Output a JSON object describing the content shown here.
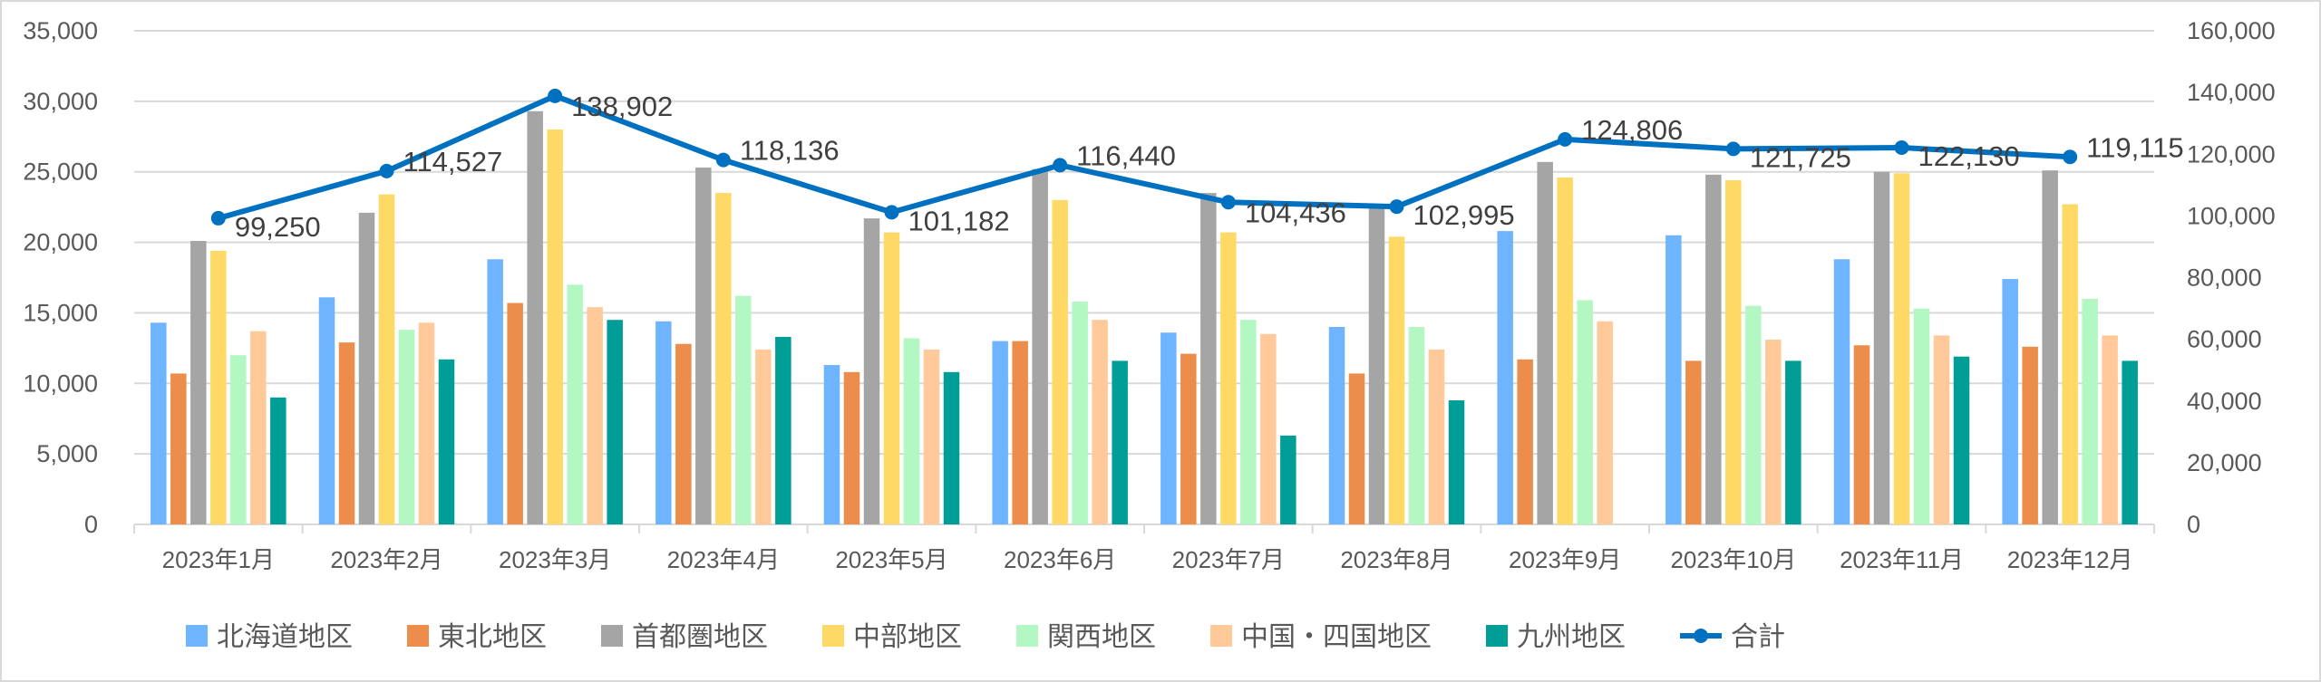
{
  "chart_data": {
    "type": "bar+line",
    "title": "",
    "categories": [
      "2023年1月",
      "2023年2月",
      "2023年3月",
      "2023年4月",
      "2023年5月",
      "2023年6月",
      "2023年7月",
      "2023年8月",
      "2023年9月",
      "2023年10月",
      "2023年11月",
      "2023年12月"
    ],
    "series": [
      {
        "name": "北海道地区",
        "type": "bar",
        "axis": "left",
        "color": "#6EB4FF",
        "values": [
          14300,
          16100,
          18800,
          14400,
          11300,
          13000,
          13600,
          14000,
          20800,
          20500,
          18800,
          17400
        ]
      },
      {
        "name": "東北地区",
        "type": "bar",
        "axis": "left",
        "color": "#ED8D4C",
        "values": [
          10700,
          12900,
          15700,
          12800,
          10800,
          13000,
          12100,
          10700,
          11700,
          11600,
          12700,
          12600
        ]
      },
      {
        "name": "首都圏地区",
        "type": "bar",
        "axis": "left",
        "color": "#A5A5A5",
        "values": [
          20100,
          22100,
          29300,
          25300,
          21700,
          25200,
          23500,
          22500,
          25700,
          24800,
          25000,
          25100
        ]
      },
      {
        "name": "中部地区",
        "type": "bar",
        "axis": "left",
        "color": "#FFD966",
        "values": [
          19400,
          23400,
          28000,
          23500,
          20700,
          23000,
          20700,
          20400,
          24600,
          24400,
          24900,
          22700
        ]
      },
      {
        "name": "関西地区",
        "type": "bar",
        "axis": "left",
        "color": "#B3F7C3",
        "values": [
          12000,
          13800,
          17000,
          16200,
          13200,
          15800,
          14500,
          14000,
          15900,
          15500,
          15300,
          16000
        ]
      },
      {
        "name": "中国・四国地区",
        "type": "bar",
        "axis": "left",
        "color": "#FFC999",
        "values": [
          13700,
          14300,
          15400,
          12400,
          12400,
          14500,
          13500,
          12400,
          14400,
          13100,
          13400,
          13400
        ]
      },
      {
        "name": "九州地区",
        "type": "bar",
        "axis": "left",
        "color": "#009E96",
        "values": [
          9000,
          11700,
          14500,
          13300,
          10800,
          11600,
          6300,
          8800,
          null,
          11600,
          11900,
          11600
        ]
      },
      {
        "name": "合計",
        "type": "line",
        "axis": "right",
        "color": "#0070C0",
        "values": [
          99250,
          114527,
          138902,
          118136,
          101182,
          116440,
          104436,
          102995,
          124806,
          121725,
          122130,
          119115
        ],
        "labels": [
          "99,250",
          "114,527",
          "138,902",
          "118,136",
          "101,182",
          "116,440",
          "104,436",
          "102,995",
          "124,806",
          "121,725",
          "122,130",
          "119,115"
        ]
      }
    ],
    "left_axis": {
      "range": [
        0,
        35000
      ],
      "ticks": [
        "0",
        "5,000",
        "10,000",
        "15,000",
        "20,000",
        "25,000",
        "30,000",
        "35,000"
      ]
    },
    "right_axis": {
      "range": [
        0,
        160000
      ],
      "ticks": [
        "0",
        "20,000",
        "40,000",
        "60,000",
        "80,000",
        "100,000",
        "120,000",
        "140,000",
        "160,000"
      ]
    },
    "grid": true,
    "legend_position": "bottom"
  }
}
